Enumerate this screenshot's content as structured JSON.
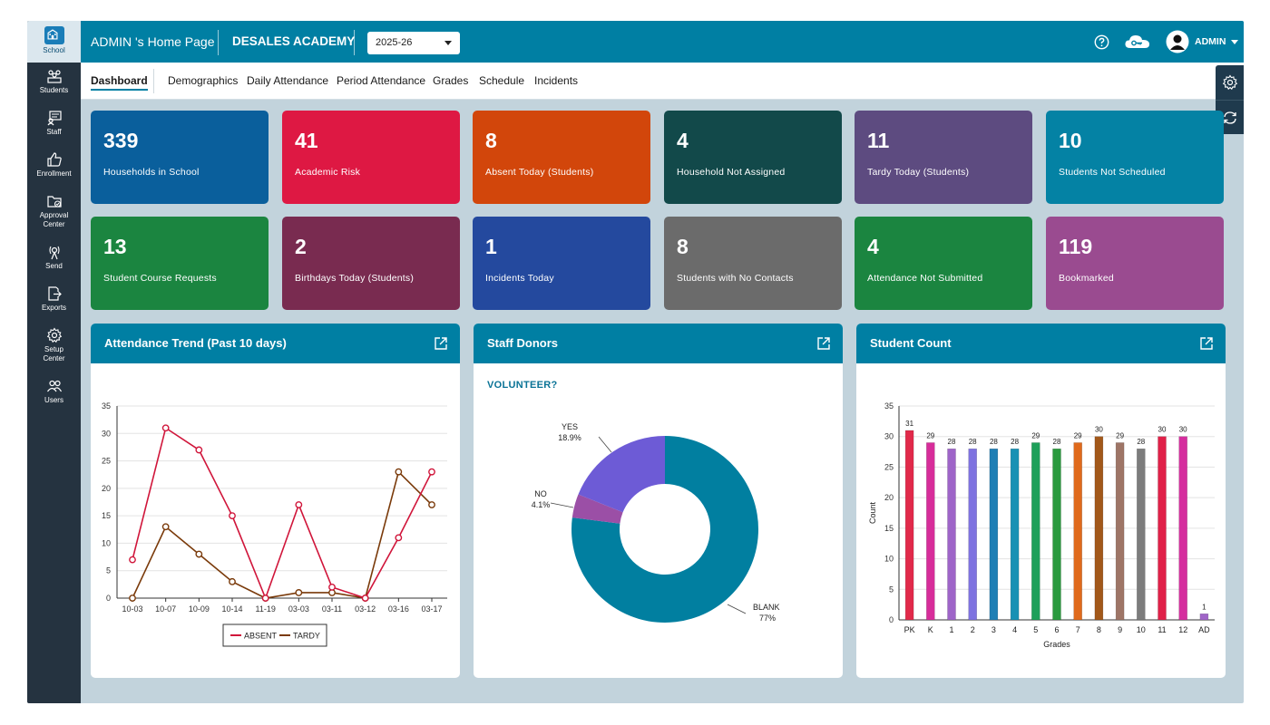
{
  "sidebar": {
    "items": [
      {
        "label": "School",
        "icon": "school-icon"
      },
      {
        "label": "Students",
        "icon": "students-icon"
      },
      {
        "label": "Staff",
        "icon": "staff-icon"
      },
      {
        "label": "Enrollment",
        "icon": "thumbs-up-icon"
      },
      {
        "label": "Approval",
        "label2": "Center",
        "icon": "folder-check-icon"
      },
      {
        "label": "Send",
        "icon": "send-icon"
      },
      {
        "label": "Exports",
        "icon": "export-icon"
      },
      {
        "label": "Setup",
        "label2": "Center",
        "icon": "gear-icon"
      },
      {
        "label": "Users",
        "icon": "users-icon"
      }
    ]
  },
  "header": {
    "title": "ADMIN 's Home Page",
    "school": "DESALES ACADEMY",
    "year": "2025-26",
    "user": "ADMIN"
  },
  "tabs": [
    "Dashboard",
    "Demographics",
    "Daily Attendance",
    "Period Attendance",
    "Grades",
    "Schedule",
    "Incidents"
  ],
  "cards": [
    {
      "value": "339",
      "label": "Households in School",
      "color": "#0a5f9c"
    },
    {
      "value": "41",
      "label": "Academic Risk",
      "color": "#de1843"
    },
    {
      "value": "8",
      "label": "Absent Today (Students)",
      "color": "#d2460b"
    },
    {
      "value": "4",
      "label": "Household Not Assigned",
      "color": "#12494a"
    },
    {
      "value": "11",
      "label": "Tardy Today (Students)",
      "color": "#5d4b80"
    },
    {
      "value": "10",
      "label": "Students Not Scheduled",
      "color": "#0482a4"
    },
    {
      "value": "13",
      "label": "Student Course Requests",
      "color": "#1b8540"
    },
    {
      "value": "2",
      "label": "Birthdays Today (Students)",
      "color": "#792b50"
    },
    {
      "value": "1",
      "label": "Incidents Today",
      "color": "#24499e"
    },
    {
      "value": "8",
      "label": "Students with No Contacts",
      "color": "#6b6b6b"
    },
    {
      "value": "4",
      "label": "Attendance Not Submitted",
      "color": "#1b8540"
    },
    {
      "value": "119",
      "label": "Bookmarked",
      "color": "#9a4b90"
    }
  ],
  "panels": {
    "attendance": {
      "title": "Attendance Trend (Past 10 days)"
    },
    "donors": {
      "title": "Staff Donors",
      "subtitle": "VOLUNTEER?"
    },
    "students": {
      "title": "Student Count"
    }
  },
  "chart_data": [
    {
      "type": "line",
      "title": "Attendance Trend (Past 10 days)",
      "x": [
        "10-03",
        "10-07",
        "10-09",
        "10-14",
        "11-19",
        "03-03",
        "03-11",
        "03-12",
        "03-16",
        "03-17"
      ],
      "ylim": [
        0,
        35
      ],
      "yticks": [
        0,
        5,
        10,
        15,
        20,
        25,
        30,
        35
      ],
      "grid": true,
      "legend": "bottom",
      "series": [
        {
          "name": "ABSENT",
          "color": "#d0153a",
          "values": [
            7,
            31,
            27,
            15,
            0,
            17,
            2,
            0,
            11,
            23
          ]
        },
        {
          "name": "TARDY",
          "color": "#7a3a0a",
          "values": [
            0,
            13,
            8,
            3,
            0,
            1,
            1,
            0,
            23,
            17
          ]
        }
      ]
    },
    {
      "type": "pie",
      "title": "VOLUNTEER?",
      "donut": true,
      "slices": [
        {
          "name": "BLANK",
          "label": "77%",
          "value": 77,
          "color": "#017fa0"
        },
        {
          "name": "NO",
          "label": "4.1%",
          "value": 4.1,
          "color": "#9b4fa6"
        },
        {
          "name": "YES",
          "label": "18.9%",
          "value": 18.9,
          "color": "#6d5bd6"
        }
      ]
    },
    {
      "type": "bar",
      "categories": [
        "PK",
        "K",
        "1",
        "2",
        "3",
        "4",
        "5",
        "6",
        "7",
        "8",
        "9",
        "10",
        "11",
        "12",
        "AD"
      ],
      "values": [
        31,
        29,
        28,
        28,
        28,
        28,
        29,
        28,
        29,
        30,
        29,
        28,
        30,
        30,
        1
      ],
      "colors": [
        "#e12a4a",
        "#d72d9a",
        "#9e64c8",
        "#7e72e0",
        "#1f7fb5",
        "#1891b4",
        "#1ea05a",
        "#2a9a3e",
        "#e06a1c",
        "#a2581a",
        "#9e7566",
        "#7c7c7c",
        "#e02048",
        "#d52d9e",
        "#a065c8"
      ],
      "xlabel": "Grades",
      "ylabel": "Count",
      "ylim": [
        0,
        35
      ],
      "yticks": [
        0,
        5,
        10,
        15,
        20,
        25,
        30,
        35
      ],
      "grid": true
    }
  ]
}
